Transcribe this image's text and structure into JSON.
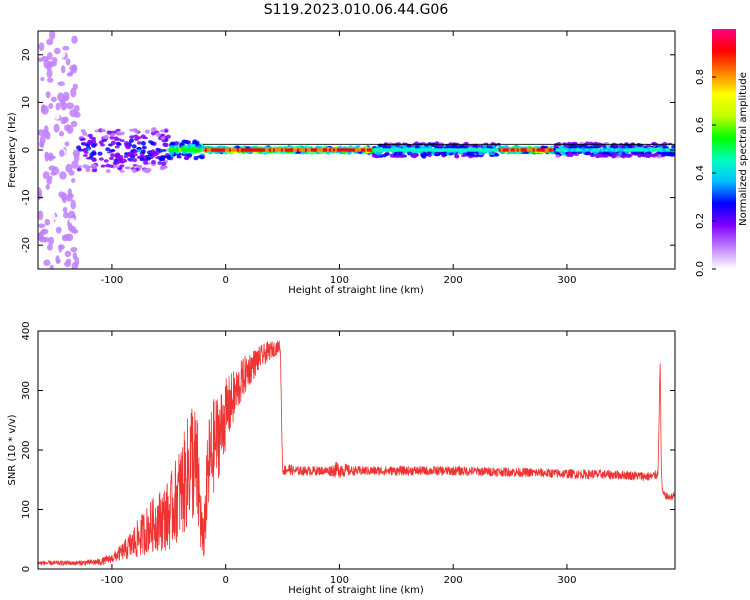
{
  "figure": {
    "title": "S119.2023.010.06.44.G06"
  },
  "chart_data": [
    {
      "type": "heatmap",
      "title": "S119.2023.010.06.44.G06",
      "xlabel": "Height of straight line (km)",
      "ylabel": "Frequency (Hz)",
      "xlim": [
        -165,
        395
      ],
      "ylim": [
        -25,
        25
      ],
      "xticks": [
        -100,
        0,
        100,
        200,
        300
      ],
      "yticks": [
        -20,
        -10,
        0,
        10,
        20
      ],
      "grid": false,
      "colorbar": {
        "label": "Normalized spectral amplitude",
        "range": [
          0,
          1
        ],
        "ticks": [
          "0.0",
          "0.2",
          "0.4",
          "0.6",
          "0.8"
        ],
        "tick_values": [
          0,
          0.2,
          0.4,
          0.6,
          0.8
        ],
        "colors": [
          "#ffffff",
          "#c080ff",
          "#8000ff",
          "#0000ff",
          "#00c0ff",
          "#00ffc0",
          "#00ff00",
          "#c0ff00",
          "#ffff00",
          "#ff8000",
          "#ff0000",
          "#ff0080"
        ]
      },
      "bands": [
        {
          "x": [
            -165,
            -130
          ],
          "y_halfwidth": 25,
          "amplitude": 0.1,
          "description_level": "scattered"
        },
        {
          "x": [
            -130,
            -50
          ],
          "y_halfwidth": 5,
          "amplitude": 0.3
        },
        {
          "x": [
            -50,
            -20
          ],
          "y_halfwidth": 2,
          "amplitude": 0.6
        },
        {
          "x": [
            -20,
            130
          ],
          "y_halfwidth": 0.6,
          "amplitude": 0.95
        },
        {
          "x": [
            130,
            240
          ],
          "y_halfwidth": 1.5,
          "amplitude": 0.5
        },
        {
          "x": [
            240,
            290
          ],
          "y_halfwidth": 0.6,
          "amplitude": 0.95
        },
        {
          "x": [
            290,
            395
          ],
          "y_halfwidth": 1.5,
          "amplitude": 0.45
        }
      ]
    },
    {
      "type": "line",
      "xlabel": "Height of straight line (km)",
      "ylabel": "SNR (10 * v/v)",
      "xlim": [
        -165,
        395
      ],
      "ylim": [
        0,
        400
      ],
      "xticks": [
        -100,
        0,
        100,
        200,
        300
      ],
      "yticks": [
        0,
        100,
        200,
        300,
        400
      ],
      "grid": false,
      "series": [
        {
          "color": "#ee3333",
          "x": [
            -165,
            -130,
            -110,
            -100,
            -90,
            -80,
            -70,
            -60,
            -50,
            -45,
            -40,
            -35,
            -30,
            -25,
            -20,
            -15,
            -10,
            -5,
            0,
            5,
            10,
            15,
            20,
            25,
            30,
            35,
            40,
            45,
            48,
            50,
            55,
            60,
            70,
            80,
            90,
            100,
            110,
            120,
            150,
            200,
            250,
            300,
            350,
            375,
            380,
            382,
            383,
            384,
            385,
            390,
            395
          ],
          "y": [
            10,
            10,
            12,
            18,
            30,
            45,
            65,
            80,
            90,
            110,
            130,
            150,
            190,
            160,
            40,
            170,
            210,
            230,
            260,
            280,
            300,
            320,
            335,
            345,
            355,
            362,
            368,
            372,
            375,
            165,
            168,
            165,
            165,
            165,
            165,
            168,
            165,
            165,
            165,
            165,
            163,
            160,
            158,
            155,
            160,
            350,
            160,
            130,
            125,
            120,
            125
          ],
          "spread": [
            4,
            4,
            6,
            8,
            15,
            30,
            40,
            50,
            60,
            70,
            80,
            90,
            110,
            100,
            40,
            90,
            80,
            70,
            60,
            50,
            40,
            35,
            30,
            25,
            20,
            18,
            15,
            12,
            10,
            8,
            10,
            8,
            8,
            8,
            8,
            15,
            8,
            8,
            8,
            8,
            8,
            8,
            8,
            8,
            8,
            10,
            8,
            6,
            6,
            6,
            6
          ]
        }
      ]
    }
  ]
}
